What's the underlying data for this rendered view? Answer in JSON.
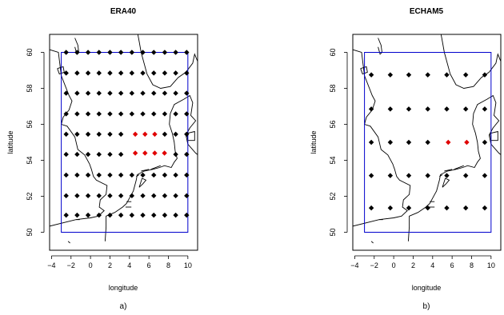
{
  "chart_data": [
    {
      "type": "scatter",
      "title": "ERA40",
      "xlabel": "longitude",
      "ylabel": "latitude",
      "caption": "a)",
      "xlim": [
        -4.2,
        11
      ],
      "ylim": [
        49.0,
        61.0
      ],
      "xticks": [
        -4,
        -2,
        0,
        2,
        4,
        6,
        8,
        10
      ],
      "yticks": [
        50,
        52,
        54,
        56,
        58,
        60
      ],
      "domain_box": {
        "lon": [
          -3,
          10
        ],
        "lat": [
          50,
          60
        ]
      },
      "grid_points": {
        "lons": [
          -2.5,
          -1.375,
          -0.25,
          0.875,
          2.0,
          3.125,
          4.25,
          5.375,
          6.5,
          7.625,
          8.75,
          9.875
        ],
        "lats": [
          50.95,
          52.03,
          53.18,
          54.33,
          55.45,
          56.58,
          57.73,
          58.85,
          60.0
        ],
        "color": "#000000"
      },
      "highlight_points": {
        "color": "#e00000",
        "points": [
          [
            4.6,
            55.45
          ],
          [
            5.6,
            55.45
          ],
          [
            6.6,
            55.45
          ],
          [
            4.6,
            54.4
          ],
          [
            5.6,
            54.4
          ],
          [
            6.6,
            54.4
          ],
          [
            7.6,
            54.4
          ]
        ]
      },
      "box_color": "#0000cc"
    },
    {
      "type": "scatter",
      "title": "ECHAM5",
      "xlabel": "longitude",
      "ylabel": "latitude",
      "caption": "b)",
      "xlim": [
        -4.2,
        11
      ],
      "ylim": [
        49.0,
        61.0
      ],
      "xticks": [
        -4,
        -2,
        0,
        2,
        4,
        6,
        8,
        10
      ],
      "yticks": [
        50,
        52,
        54,
        56,
        58,
        60
      ],
      "domain_box": {
        "lon": [
          -3,
          10
        ],
        "lat": [
          50,
          60
        ]
      },
      "grid_points": {
        "lons": [
          -2.3,
          -0.35,
          1.55,
          3.5,
          5.45,
          7.4,
          9.35
        ],
        "lats": [
          51.35,
          53.15,
          55.0,
          56.85,
          58.75
        ],
        "color": "#000000"
      },
      "highlight_points": {
        "color": "#e00000",
        "points": [
          [
            5.6,
            55.0
          ],
          [
            7.5,
            55.0
          ]
        ]
      },
      "box_color": "#0000cc"
    }
  ]
}
